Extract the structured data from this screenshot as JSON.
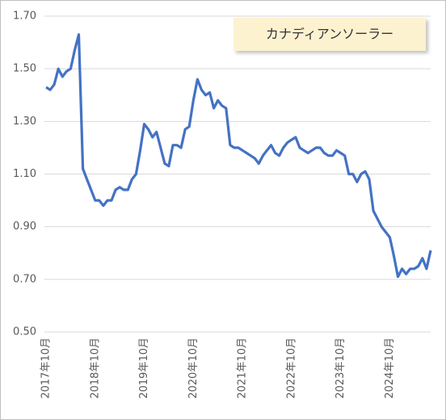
{
  "chart_data": {
    "type": "line",
    "title": "カナディアンソーラー",
    "categories": [
      "2017年10月",
      null,
      null,
      null,
      null,
      null,
      null,
      null,
      null,
      null,
      null,
      null,
      "2018年10月",
      null,
      null,
      null,
      null,
      null,
      null,
      null,
      null,
      null,
      null,
      null,
      "2019年10月",
      null,
      null,
      null,
      null,
      null,
      null,
      null,
      null,
      null,
      null,
      null,
      "2020年10月",
      null,
      null,
      null,
      null,
      null,
      null,
      null,
      null,
      null,
      null,
      null,
      "2021年10月",
      null,
      null,
      null,
      null,
      null,
      null,
      null,
      null,
      null,
      null,
      null,
      "2022年10月",
      null,
      null,
      null,
      null,
      null,
      null,
      null,
      null,
      null,
      null,
      null,
      "2023年10月",
      null,
      null,
      null,
      null,
      null,
      null,
      null,
      null,
      null,
      null,
      null,
      "2024年10月",
      null,
      null,
      null,
      null,
      null,
      null,
      null,
      null,
      null,
      null
    ],
    "series": [
      {
        "name": "カナディアンソーラー",
        "color": "#4472c4",
        "values": [
          1.43,
          1.42,
          1.44,
          1.5,
          1.47,
          1.49,
          1.5,
          1.57,
          1.63,
          1.12,
          1.08,
          1.04,
          1.0,
          1.0,
          0.98,
          1.0,
          1.0,
          1.04,
          1.05,
          1.04,
          1.04,
          1.08,
          1.1,
          1.19,
          1.29,
          1.27,
          1.24,
          1.26,
          1.2,
          1.14,
          1.13,
          1.21,
          1.21,
          1.2,
          1.27,
          1.28,
          1.38,
          1.46,
          1.42,
          1.4,
          1.41,
          1.35,
          1.38,
          1.36,
          1.35,
          1.21,
          1.2,
          1.2,
          1.19,
          1.18,
          1.17,
          1.16,
          1.14,
          1.17,
          1.19,
          1.21,
          1.18,
          1.17,
          1.2,
          1.22,
          1.23,
          1.24,
          1.2,
          1.19,
          1.18,
          1.19,
          1.2,
          1.2,
          1.18,
          1.17,
          1.17,
          1.19,
          1.18,
          1.17,
          1.1,
          1.1,
          1.07,
          1.1,
          1.11,
          1.08,
          0.96,
          0.93,
          0.9,
          0.88,
          0.86,
          0.79,
          0.71,
          0.74,
          0.72,
          0.74,
          0.74,
          0.75,
          0.78,
          0.74,
          0.81
        ]
      }
    ],
    "ylim": [
      0.5,
      1.7
    ],
    "yticks": [
      {
        "value": 0.5,
        "label": "0.50"
      },
      {
        "value": 0.7,
        "label": "0.70"
      },
      {
        "value": 0.9,
        "label": "0.90"
      },
      {
        "value": 1.1,
        "label": "1.10"
      },
      {
        "value": 1.3,
        "label": "1.30"
      },
      {
        "value": 1.5,
        "label": "1.50"
      },
      {
        "value": 1.7,
        "label": "1.70"
      }
    ],
    "grid": true
  }
}
